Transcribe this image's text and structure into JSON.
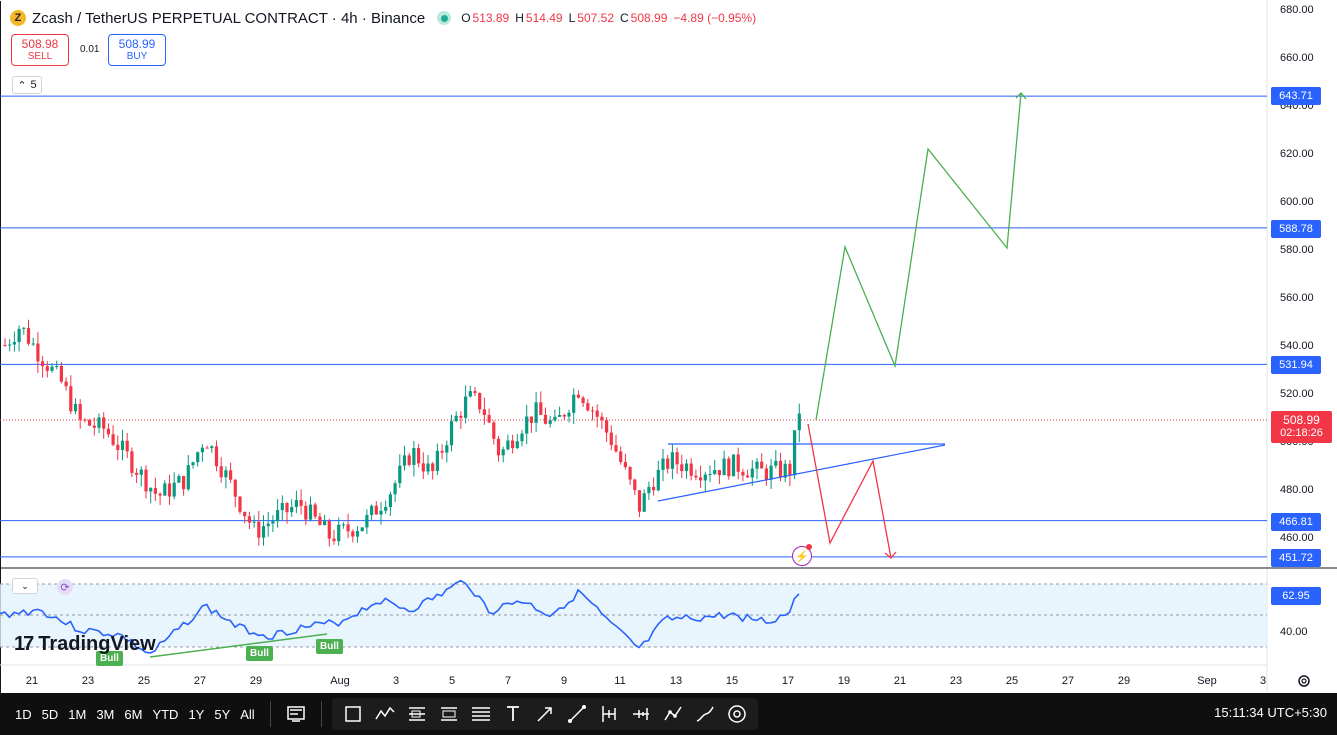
{
  "header": {
    "coin_glyph": "Z",
    "title": "Zcash / TetherUS PERPETUAL CONTRACT · 4h · Binance",
    "ohlc": [
      {
        "key": "O",
        "value": "513.89"
      },
      {
        "key": "H",
        "value": "514.49"
      },
      {
        "key": "L",
        "value": "507.52"
      },
      {
        "key": "C",
        "value": "508.99"
      },
      {
        "key": "",
        "value": "−4.89 (−0.95%)"
      }
    ]
  },
  "trade": {
    "sell_price": "508.98",
    "sell_label": "SELL",
    "spread": "0.01",
    "buy_price": "508.99",
    "buy_label": "BUY"
  },
  "indicators_collapse_count": "5",
  "price_axis": {
    "ticks": [
      "680.00",
      "660.00",
      "640.00",
      "620.00",
      "600.00",
      "580.00",
      "560.00",
      "540.00",
      "520.00",
      "500.00",
      "480.00",
      "460.00"
    ],
    "tick_values": [
      680,
      660,
      640,
      620,
      600,
      580,
      560,
      540,
      520,
      500,
      480,
      460
    ]
  },
  "levels": [
    {
      "label": "643.71",
      "value": 643.71
    },
    {
      "label": "588.78",
      "value": 588.78
    },
    {
      "label": "531.94",
      "value": 531.94
    },
    {
      "label": "466.81",
      "value": 466.81
    },
    {
      "label": "451.72",
      "value": 451.72
    }
  ],
  "current_price": {
    "price": "508.99",
    "countdown": "02:18:26",
    "value": 508.99
  },
  "rsi": {
    "value_label": "62.95",
    "tick": "40.00",
    "upper_band": 70,
    "lower_band": 30
  },
  "divergence_labels": [
    "Bull",
    "Bull",
    "Bull"
  ],
  "time_axis": [
    "21",
    "23",
    "25",
    "27",
    "29",
    "Aug",
    "3",
    "5",
    "7",
    "9",
    "11",
    "13",
    "15",
    "17",
    "19",
    "21",
    "23",
    "25",
    "27",
    "29",
    "Sep",
    "3"
  ],
  "watermark": "TradingView",
  "toolbar": {
    "timeframes": [
      "1D",
      "5D",
      "1M",
      "3M",
      "6M",
      "YTD",
      "1Y",
      "5Y",
      "All"
    ],
    "clock": "15:11:34 UTC+5:30",
    "tools": [
      "replay-icon",
      "rectangle-icon",
      "path-icon",
      "long-position-icon",
      "short-position-icon",
      "fib-icon",
      "text-icon",
      "arrow-icon",
      "trendline-icon",
      "measure-icon",
      "pattern-icon",
      "projection-icon",
      "brush-icon",
      "target-icon"
    ]
  },
  "colors": {
    "up": "#089981",
    "down": "#f23645",
    "accent": "#2962ff",
    "projection_up": "#4caf50",
    "projection_down": "#f23645",
    "rsi_line": "#2962ff"
  },
  "chart_data": {
    "type": "candlestick",
    "symbol": "ZECUSDT.P",
    "ylim": [
      451.72,
      680
    ],
    "projection_bullish": [
      [
        0,
        509
      ],
      [
        1,
        580
      ],
      [
        2,
        532
      ],
      [
        3,
        621
      ],
      [
        4,
        580
      ],
      [
        5,
        643.71
      ]
    ],
    "projection_bearish": [
      [
        0,
        509
      ],
      [
        1,
        458
      ],
      [
        2,
        493
      ],
      [
        3,
        452
      ]
    ]
  }
}
